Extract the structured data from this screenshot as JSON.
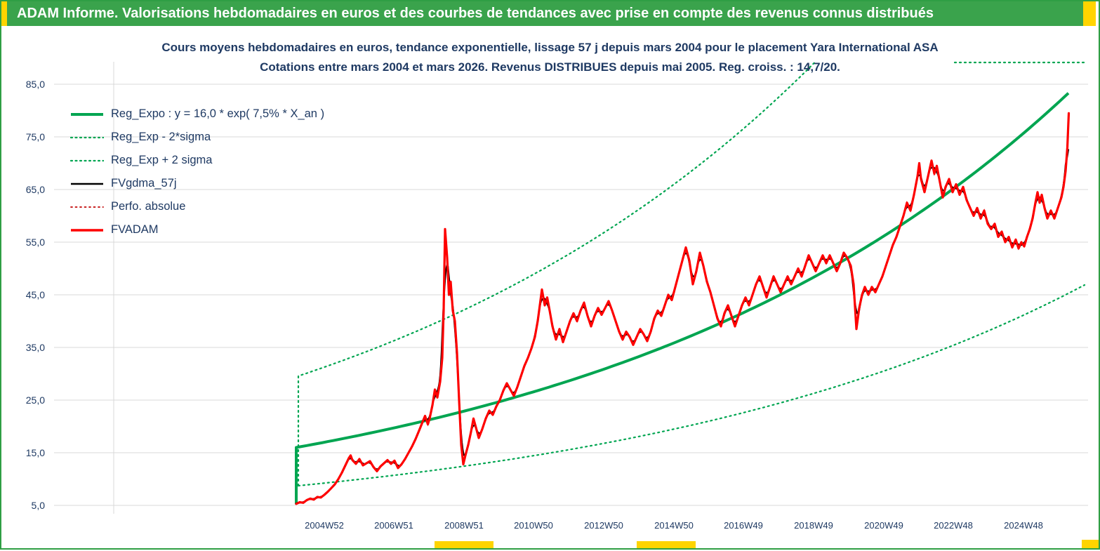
{
  "banner": {
    "title": "ADAM Informe. Valorisations hebdomadaires en euros et des courbes de tendances avec prise en compte des revenus connus distribués"
  },
  "chart_data": {
    "type": "line",
    "title_line1": "Cours moyens hebdomadaires en euros, tendance exponentielle, lissage 57 j depuis mars 2004 pour le placement Yara International ASA",
    "title_line2": "Cotations entre mars 2004 et mars 2026. Revenus DISTRIBUES depuis mai 2005. Reg. croiss. : 14,7/20.",
    "xlabel": "",
    "ylabel": "",
    "x_axis": {
      "range": [
        1997.3,
        2026.76
      ],
      "ticks": [
        {
          "label": "2004W52",
          "year": 2005.0
        },
        {
          "label": "2006W51",
          "year": 2006.98
        },
        {
          "label": "2008W51",
          "year": 2008.98
        },
        {
          "label": "2010W50",
          "year": 2010.96
        },
        {
          "label": "2012W50",
          "year": 2012.96
        },
        {
          "label": "2014W50",
          "year": 2014.96
        },
        {
          "label": "2016W49",
          "year": 2016.94
        },
        {
          "label": "2018W49",
          "year": 2018.94
        },
        {
          "label": "2020W49",
          "year": 2020.94
        },
        {
          "label": "2022W48",
          "year": 2022.92
        },
        {
          "label": "2024W48",
          "year": 2024.92
        }
      ]
    },
    "y_axis": {
      "range": [
        5,
        85
      ],
      "ticks": [
        {
          "label": "5,0",
          "value": 5
        },
        {
          "label": "15,0",
          "value": 15
        },
        {
          "label": "25,0",
          "value": 25
        },
        {
          "label": "35,0",
          "value": 35
        },
        {
          "label": "45,0",
          "value": 45
        },
        {
          "label": "55,0",
          "value": 55
        },
        {
          "label": "65,0",
          "value": 65
        },
        {
          "label": "75,0",
          "value": 75
        },
        {
          "label": "85,0",
          "value": 85
        }
      ]
    },
    "colors": {
      "green": "#00a551",
      "red": "#fe0000",
      "dark_red": "#c00000",
      "black": "#000000",
      "axis_text": "#1f3a63",
      "gridline": "#d9d9d9",
      "banner_green": "#3aa34c",
      "accent_yellow": "#ffd400"
    },
    "legend": [
      {
        "label": "Reg_Expo : y = 16,0 * exp( 7,5% *  X_an )",
        "color": "#00a551",
        "style": "solid",
        "width": 4
      },
      {
        "label": "Reg_Exp - 2*sigma",
        "color": "#00a551",
        "style": "dotted",
        "width": 2.2
      },
      {
        "label": "Reg_Exp + 2 sigma",
        "color": "#00a551",
        "style": "dotted",
        "width": 2.2
      },
      {
        "label": "FVgdma_57j",
        "color": "#000000",
        "style": "solid",
        "width": 2.4
      },
      {
        "label": "Perfo. absolue",
        "color": "#c00000",
        "style": "dotted",
        "width": 1.8
      },
      {
        "label": "FVADAM",
        "color": "#fe0000",
        "style": "solid",
        "width": 3.4
      }
    ],
    "regression": {
      "formula": "y = 16,0 * exp( 7,5% * X_an )",
      "y0": 16.0,
      "rate": 0.075,
      "t0": 2004.2,
      "t1": 2026.2,
      "band_t1": 2026.7,
      "sigma_mult": 1.84,
      "start_tail_value": 5.2,
      "growth_rating": "14,7/20"
    },
    "smoothing_half_window_years": 0.08,
    "series": [
      {
        "name": "FVADAM",
        "points": [
          [
            2004.2,
            5.3
          ],
          [
            2004.3,
            5.6
          ],
          [
            2004.4,
            5.5
          ],
          [
            2004.5,
            6.0
          ],
          [
            2004.6,
            6.3
          ],
          [
            2004.7,
            6.1
          ],
          [
            2004.8,
            6.6
          ],
          [
            2004.9,
            6.5
          ],
          [
            2005.0,
            7.0
          ],
          [
            2005.1,
            7.6
          ],
          [
            2005.2,
            8.3
          ],
          [
            2005.3,
            9.0
          ],
          [
            2005.4,
            10.0
          ],
          [
            2005.5,
            11.2
          ],
          [
            2005.6,
            12.6
          ],
          [
            2005.7,
            14.0
          ],
          [
            2005.75,
            14.5
          ],
          [
            2005.8,
            13.6
          ],
          [
            2005.9,
            12.9
          ],
          [
            2006.0,
            13.8
          ],
          [
            2006.1,
            12.6
          ],
          [
            2006.2,
            13.0
          ],
          [
            2006.3,
            13.4
          ],
          [
            2006.4,
            12.3
          ],
          [
            2006.5,
            11.5
          ],
          [
            2006.6,
            12.4
          ],
          [
            2006.7,
            13.0
          ],
          [
            2006.8,
            13.6
          ],
          [
            2006.9,
            12.9
          ],
          [
            2007.0,
            13.5
          ],
          [
            2007.1,
            12.1
          ],
          [
            2007.2,
            12.8
          ],
          [
            2007.3,
            13.8
          ],
          [
            2007.4,
            15.0
          ],
          [
            2007.5,
            16.2
          ],
          [
            2007.6,
            17.6
          ],
          [
            2007.7,
            19.2
          ],
          [
            2007.87,
            22.0
          ],
          [
            2007.95,
            20.4
          ],
          [
            2008.0,
            21.5
          ],
          [
            2008.08,
            24.0
          ],
          [
            2008.15,
            27.0
          ],
          [
            2008.22,
            25.5
          ],
          [
            2008.3,
            28.5
          ],
          [
            2008.36,
            33.0
          ],
          [
            2008.4,
            42.0
          ],
          [
            2008.44,
            57.5
          ],
          [
            2008.5,
            52.0
          ],
          [
            2008.55,
            45.0
          ],
          [
            2008.6,
            47.5
          ],
          [
            2008.66,
            42.0
          ],
          [
            2008.72,
            40.0
          ],
          [
            2008.78,
            34.0
          ],
          [
            2008.84,
            25.0
          ],
          [
            2008.9,
            16.5
          ],
          [
            2008.96,
            12.8
          ],
          [
            2009.02,
            14.5
          ],
          [
            2009.1,
            16.5
          ],
          [
            2009.18,
            19.0
          ],
          [
            2009.25,
            21.5
          ],
          [
            2009.32,
            19.8
          ],
          [
            2009.4,
            17.8
          ],
          [
            2009.5,
            19.5
          ],
          [
            2009.6,
            21.5
          ],
          [
            2009.7,
            23.0
          ],
          [
            2009.8,
            22.2
          ],
          [
            2009.9,
            23.8
          ],
          [
            2010.0,
            25.0
          ],
          [
            2010.1,
            26.8
          ],
          [
            2010.2,
            28.2
          ],
          [
            2010.3,
            27.0
          ],
          [
            2010.4,
            25.8
          ],
          [
            2010.5,
            27.5
          ],
          [
            2010.6,
            29.5
          ],
          [
            2010.7,
            31.5
          ],
          [
            2010.8,
            33.0
          ],
          [
            2010.9,
            34.8
          ],
          [
            2011.0,
            37.0
          ],
          [
            2011.08,
            40.0
          ],
          [
            2011.15,
            43.5
          ],
          [
            2011.2,
            46.0
          ],
          [
            2011.28,
            43.0
          ],
          [
            2011.35,
            44.5
          ],
          [
            2011.42,
            42.0
          ],
          [
            2011.5,
            39.0
          ],
          [
            2011.6,
            36.5
          ],
          [
            2011.7,
            38.5
          ],
          [
            2011.8,
            36.0
          ],
          [
            2011.9,
            38.0
          ],
          [
            2012.0,
            40.0
          ],
          [
            2012.1,
            41.5
          ],
          [
            2012.2,
            40.0
          ],
          [
            2012.3,
            42.0
          ],
          [
            2012.4,
            43.5
          ],
          [
            2012.5,
            41.0
          ],
          [
            2012.6,
            39.0
          ],
          [
            2012.7,
            41.0
          ],
          [
            2012.8,
            42.5
          ],
          [
            2012.9,
            41.2
          ],
          [
            2013.0,
            42.5
          ],
          [
            2013.1,
            43.8
          ],
          [
            2013.2,
            42.0
          ],
          [
            2013.3,
            40.0
          ],
          [
            2013.4,
            38.0
          ],
          [
            2013.5,
            36.5
          ],
          [
            2013.6,
            38.0
          ],
          [
            2013.7,
            37.0
          ],
          [
            2013.8,
            35.5
          ],
          [
            2013.9,
            37.0
          ],
          [
            2014.0,
            38.5
          ],
          [
            2014.1,
            37.5
          ],
          [
            2014.2,
            36.2
          ],
          [
            2014.3,
            38.0
          ],
          [
            2014.4,
            40.5
          ],
          [
            2014.5,
            42.0
          ],
          [
            2014.6,
            41.0
          ],
          [
            2014.7,
            43.0
          ],
          [
            2014.8,
            45.0
          ],
          [
            2014.9,
            44.0
          ],
          [
            2015.0,
            46.5
          ],
          [
            2015.1,
            49.0
          ],
          [
            2015.2,
            51.5
          ],
          [
            2015.3,
            54.0
          ],
          [
            2015.4,
            51.5
          ],
          [
            2015.5,
            47.0
          ],
          [
            2015.6,
            49.5
          ],
          [
            2015.7,
            53.0
          ],
          [
            2015.8,
            50.5
          ],
          [
            2015.9,
            47.5
          ],
          [
            2016.0,
            45.5
          ],
          [
            2016.1,
            43.0
          ],
          [
            2016.2,
            40.5
          ],
          [
            2016.3,
            39.0
          ],
          [
            2016.4,
            41.5
          ],
          [
            2016.5,
            43.0
          ],
          [
            2016.6,
            41.0
          ],
          [
            2016.7,
            39.0
          ],
          [
            2016.8,
            41.0
          ],
          [
            2016.9,
            43.0
          ],
          [
            2017.0,
            44.5
          ],
          [
            2017.1,
            43.0
          ],
          [
            2017.2,
            45.0
          ],
          [
            2017.3,
            47.0
          ],
          [
            2017.4,
            48.5
          ],
          [
            2017.5,
            46.5
          ],
          [
            2017.6,
            44.5
          ],
          [
            2017.7,
            46.5
          ],
          [
            2017.8,
            48.5
          ],
          [
            2017.9,
            47.0
          ],
          [
            2018.0,
            45.5
          ],
          [
            2018.1,
            47.0
          ],
          [
            2018.2,
            48.5
          ],
          [
            2018.3,
            47.0
          ],
          [
            2018.4,
            48.5
          ],
          [
            2018.5,
            50.0
          ],
          [
            2018.6,
            48.5
          ],
          [
            2018.7,
            50.5
          ],
          [
            2018.8,
            52.5
          ],
          [
            2018.9,
            51.0
          ],
          [
            2019.0,
            49.5
          ],
          [
            2019.1,
            51.0
          ],
          [
            2019.2,
            52.5
          ],
          [
            2019.3,
            51.0
          ],
          [
            2019.4,
            52.5
          ],
          [
            2019.5,
            51.0
          ],
          [
            2019.6,
            49.5
          ],
          [
            2019.7,
            51.0
          ],
          [
            2019.8,
            53.0
          ],
          [
            2019.9,
            52.0
          ],
          [
            2020.0,
            50.5
          ],
          [
            2020.08,
            47.0
          ],
          [
            2020.16,
            38.5
          ],
          [
            2020.24,
            42.5
          ],
          [
            2020.32,
            45.0
          ],
          [
            2020.4,
            46.5
          ],
          [
            2020.5,
            45.0
          ],
          [
            2020.6,
            46.5
          ],
          [
            2020.7,
            45.5
          ],
          [
            2020.8,
            47.0
          ],
          [
            2020.9,
            48.5
          ],
          [
            2021.0,
            50.5
          ],
          [
            2021.1,
            52.5
          ],
          [
            2021.2,
            54.5
          ],
          [
            2021.3,
            56.0
          ],
          [
            2021.4,
            58.0
          ],
          [
            2021.5,
            60.0
          ],
          [
            2021.6,
            62.5
          ],
          [
            2021.7,
            61.0
          ],
          [
            2021.8,
            64.0
          ],
          [
            2021.9,
            67.5
          ],
          [
            2021.95,
            70.0
          ],
          [
            2022.0,
            67.0
          ],
          [
            2022.1,
            64.5
          ],
          [
            2022.2,
            67.5
          ],
          [
            2022.3,
            70.5
          ],
          [
            2022.38,
            68.0
          ],
          [
            2022.45,
            69.5
          ],
          [
            2022.55,
            66.0
          ],
          [
            2022.62,
            63.5
          ],
          [
            2022.7,
            65.5
          ],
          [
            2022.8,
            67.0
          ],
          [
            2022.9,
            64.5
          ],
          [
            2023.0,
            66.0
          ],
          [
            2023.1,
            64.0
          ],
          [
            2023.2,
            65.5
          ],
          [
            2023.3,
            63.0
          ],
          [
            2023.4,
            61.5
          ],
          [
            2023.5,
            60.0
          ],
          [
            2023.6,
            61.5
          ],
          [
            2023.7,
            59.5
          ],
          [
            2023.8,
            61.0
          ],
          [
            2023.9,
            58.5
          ],
          [
            2024.0,
            57.5
          ],
          [
            2024.1,
            58.5
          ],
          [
            2024.2,
            56.0
          ],
          [
            2024.3,
            57.0
          ],
          [
            2024.4,
            55.0
          ],
          [
            2024.5,
            56.0
          ],
          [
            2024.6,
            54.0
          ],
          [
            2024.7,
            55.5
          ],
          [
            2024.78,
            53.8
          ],
          [
            2024.86,
            55.0
          ],
          [
            2024.94,
            54.2
          ],
          [
            2025.02,
            56.0
          ],
          [
            2025.1,
            57.5
          ],
          [
            2025.18,
            59.5
          ],
          [
            2025.26,
            62.5
          ],
          [
            2025.32,
            64.5
          ],
          [
            2025.38,
            62.5
          ],
          [
            2025.44,
            64.0
          ],
          [
            2025.52,
            61.5
          ],
          [
            2025.6,
            59.5
          ],
          [
            2025.7,
            61.0
          ],
          [
            2025.8,
            59.5
          ],
          [
            2025.9,
            61.5
          ],
          [
            2026.0,
            63.5
          ],
          [
            2026.06,
            65.5
          ],
          [
            2026.12,
            68.5
          ],
          [
            2026.17,
            73.0
          ],
          [
            2026.21,
            79.5
          ]
        ]
      },
      {
        "name": "FVgdma_57j",
        "derived": "57-day moving average of FVADAM"
      },
      {
        "name": "Perfo. absolue",
        "coincides_with": "FVADAM"
      }
    ]
  }
}
